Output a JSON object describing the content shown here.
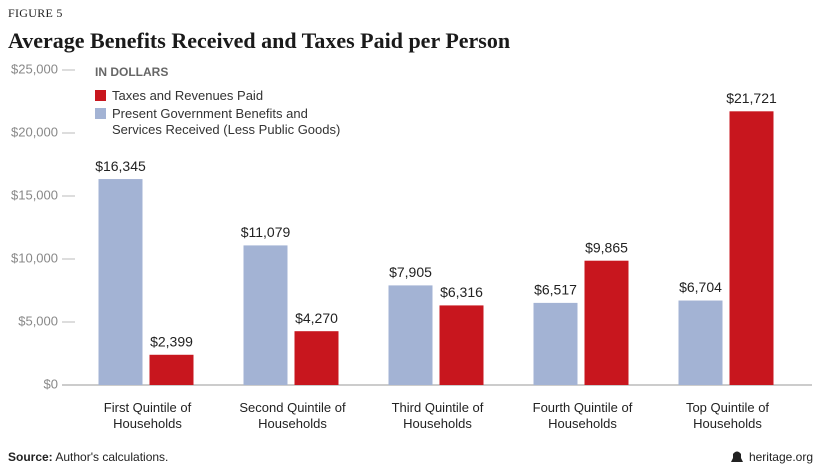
{
  "chart_data": {
    "type": "bar",
    "figure_label": "FIGURE 5",
    "title": "Average Benefits Received and Taxes Paid per Person",
    "subtitle": "IN DOLLARS",
    "categories": [
      "First Quintile of Households",
      "Second Quintile of Households",
      "Third Quintile of Households",
      "Fourth Quintile of Households",
      "Top Quintile of Households"
    ],
    "series": [
      {
        "name": "Present Government Benefits and Services Received (Less Public Goods)",
        "color": "#a3b3d4",
        "values": [
          16345,
          11079,
          7905,
          6517,
          6704
        ],
        "value_labels": [
          "$16,345",
          "$11,079",
          "$7,905",
          "$6,517",
          "$6,704"
        ]
      },
      {
        "name": "Taxes and Revenues Paid",
        "color": "#c8161e",
        "values": [
          2399,
          4270,
          6316,
          9865,
          21721
        ],
        "value_labels": [
          "$2,399",
          "$4,270",
          "$6,316",
          "$9,865",
          "$21,721"
        ]
      }
    ],
    "ylim": [
      0,
      25000
    ],
    "yticks": [
      {
        "value": 0,
        "label": "$0"
      },
      {
        "value": 5000,
        "label": "$5,000"
      },
      {
        "value": 10000,
        "label": "$10,000"
      },
      {
        "value": 15000,
        "label": "$15,000"
      },
      {
        "value": 20000,
        "label": "$20,000"
      },
      {
        "value": 25000,
        "label": "$25,000"
      }
    ],
    "source_label": "Source:",
    "source_text": "Author's calculations.",
    "brand": "heritage.org"
  }
}
